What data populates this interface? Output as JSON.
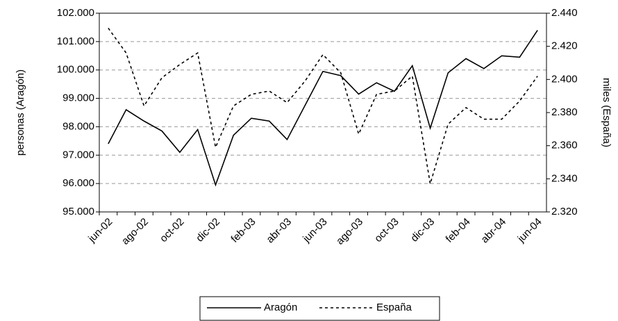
{
  "chart_data": {
    "type": "line",
    "y_label": "personas (Aragón)",
    "y2_label": "miles (España)",
    "categories": [
      "jun-02",
      null,
      "ago-02",
      null,
      "oct-02",
      null,
      "dic-02",
      null,
      "feb-03",
      null,
      "abr-03",
      null,
      "jun-03",
      null,
      "ago-03",
      null,
      "oct-03",
      null,
      "dic-03",
      null,
      "feb-04",
      null,
      "abr-04",
      null,
      "jun-04"
    ],
    "series": [
      {
        "name": "Aragón",
        "color": "#000000",
        "dash": "solid",
        "values": [
          97400,
          98600,
          98200,
          97850,
          97100,
          97900,
          95950,
          97700,
          98300,
          98200,
          97550,
          98750,
          99950,
          99800,
          99150,
          99550,
          99250,
          100150,
          97950,
          99900,
          100400,
          100050,
          100500,
          100450,
          101400
        ]
      },
      {
        "name": "España",
        "color": "#000000",
        "dash": "dotted",
        "axis": "y2",
        "values": [
          2431,
          2416,
          2384,
          2401,
          2409,
          2416,
          2359,
          2384,
          2391,
          2393,
          2386,
          2399,
          2415,
          2404,
          2367,
          2391,
          2393,
          2402,
          2337,
          2373,
          2383,
          2376,
          2376,
          2387,
          2402
        ]
      }
    ],
    "ylim": [
      95000,
      102000
    ],
    "yticks": [
      {
        "value": 95000,
        "label": "95.000"
      },
      {
        "value": 96000,
        "label": "96.000"
      },
      {
        "value": 97000,
        "label": "97.000"
      },
      {
        "value": 98000,
        "label": "98.000"
      },
      {
        "value": 99000,
        "label": "99.000"
      },
      {
        "value": 100000,
        "label": "100.000"
      },
      {
        "value": 101000,
        "label": "101.000"
      },
      {
        "value": 102000,
        "label": "102.000"
      }
    ],
    "y2lim": [
      2320,
      2440
    ],
    "y2ticks": [
      {
        "value": 2320,
        "label": "2.320"
      },
      {
        "value": 2340,
        "label": "2.340"
      },
      {
        "value": 2360,
        "label": "2.360"
      },
      {
        "value": 2380,
        "label": "2.380"
      },
      {
        "value": 2400,
        "label": "2.400"
      },
      {
        "value": 2420,
        "label": "2.420"
      },
      {
        "value": 2440,
        "label": "2.440"
      }
    ],
    "grid": true,
    "legend": "bottom"
  }
}
